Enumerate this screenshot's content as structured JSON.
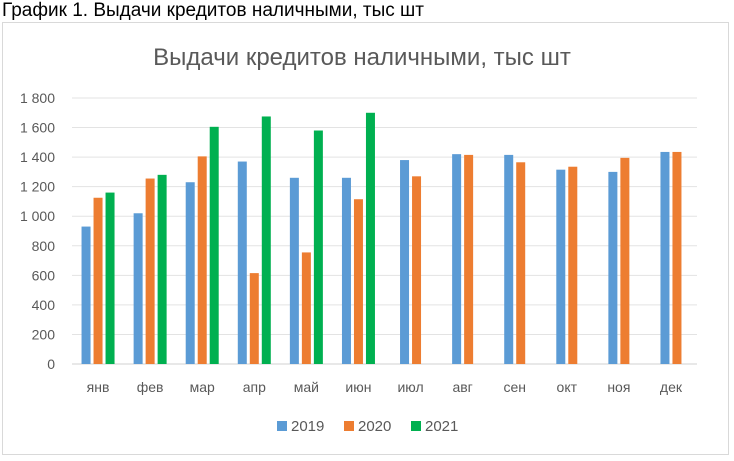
{
  "caption": "График 1. Выдачи кредитов наличными, тыс шт",
  "chart_data": {
    "type": "bar",
    "title": "Выдачи кредитов наличными, тыс шт",
    "xlabel": "",
    "ylabel": "",
    "ylim": [
      0,
      1800
    ],
    "yticks": [
      0,
      200,
      400,
      600,
      800,
      1000,
      1200,
      1400,
      1600,
      1800
    ],
    "ytick_labels": [
      "0",
      "200",
      "400",
      "600",
      "800",
      "1 000",
      "1 200",
      "1 400",
      "1 600",
      "1 800"
    ],
    "grid": true,
    "legend_position": "bottom",
    "categories": [
      "янв",
      "фев",
      "мар",
      "апр",
      "май",
      "июн",
      "июл",
      "авг",
      "сен",
      "окт",
      "ноя",
      "дек"
    ],
    "series": [
      {
        "name": "2019",
        "color": "#5b9bd5",
        "values": [
          930,
          1020,
          1230,
          1370,
          1260,
          1260,
          1380,
          1420,
          1415,
          1315,
          1300,
          1435
        ]
      },
      {
        "name": "2020",
        "color": "#ed7d31",
        "values": [
          1125,
          1255,
          1405,
          615,
          755,
          1115,
          1270,
          1415,
          1365,
          1335,
          1395,
          1435
        ]
      },
      {
        "name": "2021",
        "color": "#00b050",
        "values": [
          1160,
          1280,
          1605,
          1675,
          1580,
          1700,
          null,
          null,
          null,
          null,
          null,
          null
        ]
      }
    ]
  }
}
